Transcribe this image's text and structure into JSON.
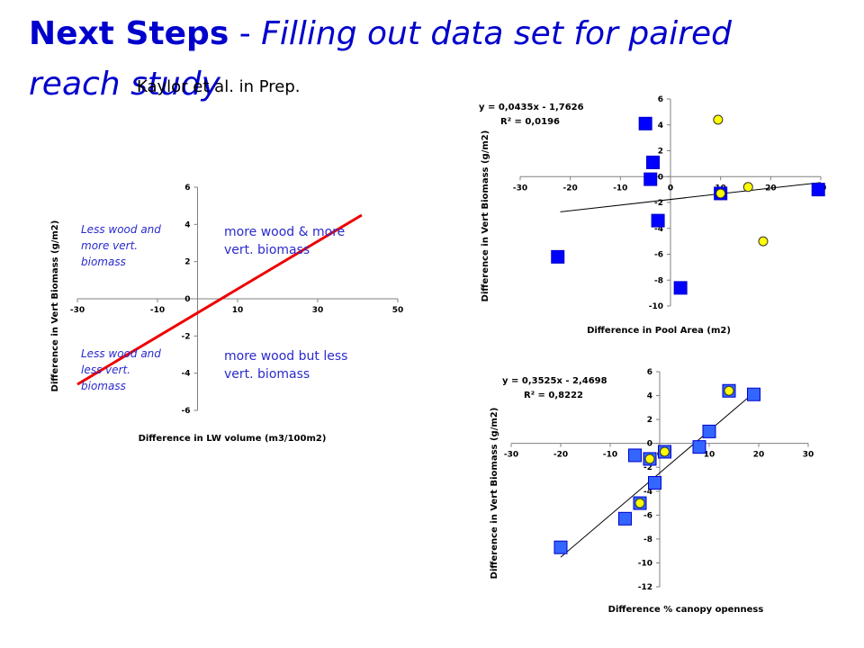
{
  "slide": {
    "title_bold": "Next Steps",
    "title_sep": " - ",
    "title_italic": "Filling out data set for paired reach study",
    "citation": "Kaylor et al. in Prep."
  },
  "colors": {
    "title": "#0000cc",
    "square_fill": "#0000ff",
    "square_fill_light": "#3366ff",
    "square_stroke": "#0000cc",
    "circle_fill": "#ffff00",
    "trend_red": "#ee0000",
    "quadrant_text": "#2a2acc"
  },
  "chart_data": [
    {
      "id": "lw",
      "type": "line",
      "title": "",
      "xlabel": "Difference in LW volume (m3/100m2)",
      "ylabel": "Difference in Vert Biomass (g/m2)",
      "xlim": [
        -30,
        50
      ],
      "ylim": [
        -6,
        6
      ],
      "xticks": [
        -30,
        -10,
        10,
        30,
        50
      ],
      "yticks": [
        -6,
        -4,
        -2,
        0,
        2,
        4,
        6
      ],
      "series": [
        {
          "type": "line",
          "x": [
            -30,
            41
          ],
          "y": [
            -4.6,
            4.5
          ]
        }
      ],
      "quadrant_labels": {
        "top_left": [
          "Less wood and",
          "more vert.",
          "biomass"
        ],
        "bottom_left": [
          "Less wood and",
          "less vert.",
          "biomass"
        ],
        "top_right": [
          "more wood & more",
          "vert. biomass"
        ],
        "bottom_right": [
          "more wood but less",
          "vert. biomass"
        ]
      }
    },
    {
      "id": "pool",
      "type": "scatter",
      "title": "",
      "xlabel": "Difference in Pool Area (m2)",
      "ylabel": "Difference in Vert Biomass (g/m2)",
      "xlim": [
        -30,
        30
      ],
      "ylim": [
        -10,
        6
      ],
      "xticks": [
        -30,
        -20,
        -10,
        0,
        10,
        20,
        30
      ],
      "yticks": [
        -10,
        -8,
        -6,
        -4,
        -2,
        0,
        2,
        4,
        6
      ],
      "equation": "y = 0,0435x - 1,7626",
      "r2": "R² = 0,0196",
      "trendline": {
        "slope": 0.0435,
        "intercept": -1.7626,
        "x": [
          -22,
          30
        ]
      },
      "series": [
        {
          "marker": "square",
          "points": [
            {
              "x": -22.5,
              "y": -6.2
            },
            {
              "x": -5,
              "y": 4.1
            },
            {
              "x": -3.5,
              "y": 1.1
            },
            {
              "x": -4,
              "y": -0.2
            },
            {
              "x": -2.5,
              "y": -3.4
            },
            {
              "x": 2,
              "y": -8.6
            },
            {
              "x": 10,
              "y": -1.3
            },
            {
              "x": 29.5,
              "y": -1.0
            }
          ]
        },
        {
          "marker": "circle",
          "points": [
            {
              "x": 9.5,
              "y": 4.4
            },
            {
              "x": 15.5,
              "y": -0.8
            },
            {
              "x": 18.5,
              "y": -5.0
            },
            {
              "x": 10,
              "y": -1.3
            }
          ]
        }
      ]
    },
    {
      "id": "canopy",
      "type": "scatter",
      "title": "",
      "xlabel": "Difference % canopy openness",
      "ylabel": "Difference in Vert Biomass (g/m2)",
      "xlim": [
        -30,
        30
      ],
      "ylim": [
        -12,
        6
      ],
      "xticks": [
        -30,
        -20,
        -10,
        0,
        10,
        20,
        30
      ],
      "yticks": [
        -12,
        -10,
        -8,
        -6,
        -4,
        -2,
        0,
        2,
        4,
        6
      ],
      "equation": "y = 0,3525x - 2,4698",
      "r2": "R² = 0,8222",
      "trendline": {
        "slope": 0.3525,
        "intercept": -2.4698,
        "x": [
          -20,
          19
        ]
      },
      "series": [
        {
          "marker": "square",
          "points": [
            {
              "x": -20,
              "y": -8.7
            },
            {
              "x": -7,
              "y": -6.3
            },
            {
              "x": -4,
              "y": -5.0
            },
            {
              "x": -1,
              "y": -3.3
            },
            {
              "x": -2,
              "y": -1.3
            },
            {
              "x": -5,
              "y": -1.0
            },
            {
              "x": 1,
              "y": -0.7
            },
            {
              "x": 8,
              "y": -0.3
            },
            {
              "x": 10,
              "y": 1.0
            },
            {
              "x": 14,
              "y": 4.4
            },
            {
              "x": 19,
              "y": 4.1
            }
          ]
        },
        {
          "marker": "circle",
          "points": [
            {
              "x": -2,
              "y": -1.3
            },
            {
              "x": -4,
              "y": -5.0
            },
            {
              "x": 1,
              "y": -0.7
            },
            {
              "x": 14,
              "y": 4.4
            }
          ]
        }
      ]
    }
  ]
}
